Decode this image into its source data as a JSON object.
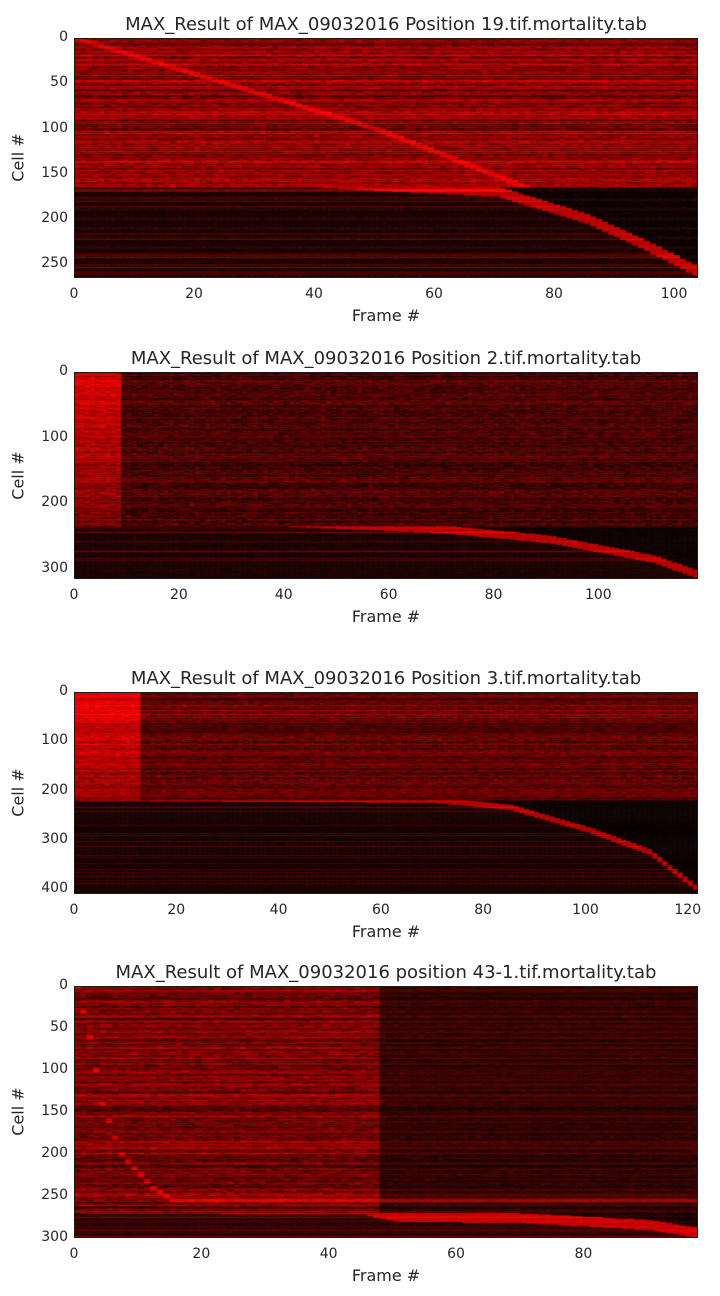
{
  "chart_data": [
    {
      "type": "heatmap",
      "title": "MAX_Result of MAX_09032016 Position 19.tif.mortality.tab",
      "xlabel": "Frame #",
      "ylabel": "Cell #",
      "xlim": [
        0,
        104
      ],
      "ylim": [
        0,
        265
      ],
      "y_inverted": true,
      "xticks": [
        0,
        20,
        40,
        60,
        80,
        100
      ],
      "yticks": [
        0,
        50,
        100,
        150,
        200,
        250
      ],
      "colormap": [
        "#000000",
        "#ff0000"
      ],
      "grid": false,
      "pattern": {
        "alive_cutoff": 165,
        "alive_intensity": 0.55,
        "dead_base": 0.08,
        "death_curve": [
          [
            0,
            0
          ],
          [
            25,
            50
          ],
          [
            50,
            100
          ],
          [
            75,
            165
          ],
          [
            85,
            190
          ],
          [
            95,
            225
          ],
          [
            100,
            245
          ],
          [
            104,
            265
          ]
        ],
        "lower_curve": [
          [
            0,
            165
          ],
          [
            40,
            165
          ],
          [
            70,
            175
          ],
          [
            85,
            205
          ],
          [
            95,
            235
          ],
          [
            104,
            265
          ]
        ]
      }
    },
    {
      "type": "heatmap",
      "title": "MAX_Result of MAX_09032016 Position 2.tif.mortality.tab",
      "xlabel": "Frame #",
      "ylabel": "Cell #",
      "xlim": [
        0,
        119
      ],
      "ylim": [
        0,
        315
      ],
      "y_inverted": true,
      "xticks": [
        0,
        20,
        40,
        60,
        80,
        100
      ],
      "yticks": [
        0,
        100,
        200,
        300
      ],
      "colormap": [
        "#000000",
        "#ff0000"
      ],
      "grid": false,
      "pattern": {
        "alive_cutoff": 235,
        "alive_intensity": 0.28,
        "dead_base": 0.07,
        "early_band": [
          0,
          8
        ],
        "lower_curve": [
          [
            0,
            235
          ],
          [
            40,
            235
          ],
          [
            70,
            245
          ],
          [
            90,
            260
          ],
          [
            110,
            290
          ],
          [
            119,
            315
          ]
        ]
      }
    },
    {
      "type": "heatmap",
      "title": "MAX_Result of MAX_09032016 Position 3.tif.mortality.tab",
      "xlabel": "Frame #",
      "ylabel": "Cell #",
      "xlim": [
        0,
        122
      ],
      "ylim": [
        0,
        410
      ],
      "y_inverted": true,
      "xticks": [
        0,
        20,
        40,
        60,
        80,
        100,
        120
      ],
      "yticks": [
        0,
        100,
        200,
        300,
        400
      ],
      "colormap": [
        "#000000",
        "#ff0000"
      ],
      "grid": false,
      "pattern": {
        "alive_cutoff": 220,
        "alive_intensity": 0.38,
        "dead_base": 0.06,
        "early_band": [
          0,
          12
        ],
        "lower_curve": [
          [
            0,
            220
          ],
          [
            70,
            225
          ],
          [
            85,
            240
          ],
          [
            100,
            285
          ],
          [
            112,
            330
          ],
          [
            122,
            410
          ]
        ]
      }
    },
    {
      "type": "heatmap",
      "title": "MAX_Result of MAX_09032016 position 43-1.tif.mortality.tab",
      "xlabel": "Frame #",
      "ylabel": "Cell #",
      "xlim": [
        0,
        98
      ],
      "ylim": [
        0,
        300
      ],
      "y_inverted": true,
      "xticks": [
        0,
        20,
        40,
        60,
        80
      ],
      "yticks": [
        0,
        50,
        100,
        150,
        200,
        250,
        300
      ],
      "colormap": [
        "#000000",
        "#ff0000"
      ],
      "grid": false,
      "pattern": {
        "alive_cutoff": 270,
        "alive_intensity": 0.45,
        "dead_base": 0.15,
        "step_frame": 47,
        "death_curve": [
          [
            0,
            0
          ],
          [
            2,
            60
          ],
          [
            4,
            140
          ],
          [
            7,
            200
          ],
          [
            12,
            240
          ],
          [
            15,
            255
          ]
        ],
        "lower_curve": [
          [
            0,
            270
          ],
          [
            45,
            272
          ],
          [
            50,
            280
          ],
          [
            70,
            282
          ],
          [
            90,
            290
          ],
          [
            98,
            300
          ]
        ]
      }
    }
  ]
}
